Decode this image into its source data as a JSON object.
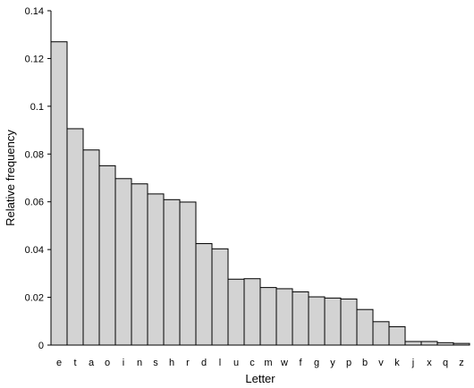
{
  "chart_data": {
    "type": "bar",
    "title": "",
    "xlabel": "Letter",
    "ylabel": "Relative frequency",
    "categories": [
      "e",
      "t",
      "a",
      "o",
      "i",
      "n",
      "s",
      "h",
      "r",
      "d",
      "l",
      "u",
      "c",
      "m",
      "w",
      "f",
      "g",
      "y",
      "p",
      "b",
      "v",
      "k",
      "j",
      "x",
      "q",
      "z"
    ],
    "values": [
      0.127,
      0.0906,
      0.0817,
      0.0751,
      0.0697,
      0.0675,
      0.0633,
      0.0609,
      0.0599,
      0.0425,
      0.0403,
      0.0276,
      0.0278,
      0.0241,
      0.0236,
      0.0223,
      0.0202,
      0.0197,
      0.0193,
      0.0149,
      0.0098,
      0.0077,
      0.0015,
      0.0015,
      0.001,
      0.0007
    ],
    "ylim": [
      0,
      0.14
    ],
    "yticks": [
      0,
      0.02,
      0.04,
      0.06,
      0.08,
      0.1,
      0.12,
      0.14
    ],
    "ytick_labels": [
      "0",
      "0.02",
      "0.04",
      "0.06",
      "0.08",
      "0.1",
      "0.12",
      "0.14"
    ],
    "grid": false,
    "legend": "none",
    "colors": {
      "bar_fill": "#d3d3d3",
      "bar_stroke": "#000000",
      "axis": "#000000"
    }
  }
}
